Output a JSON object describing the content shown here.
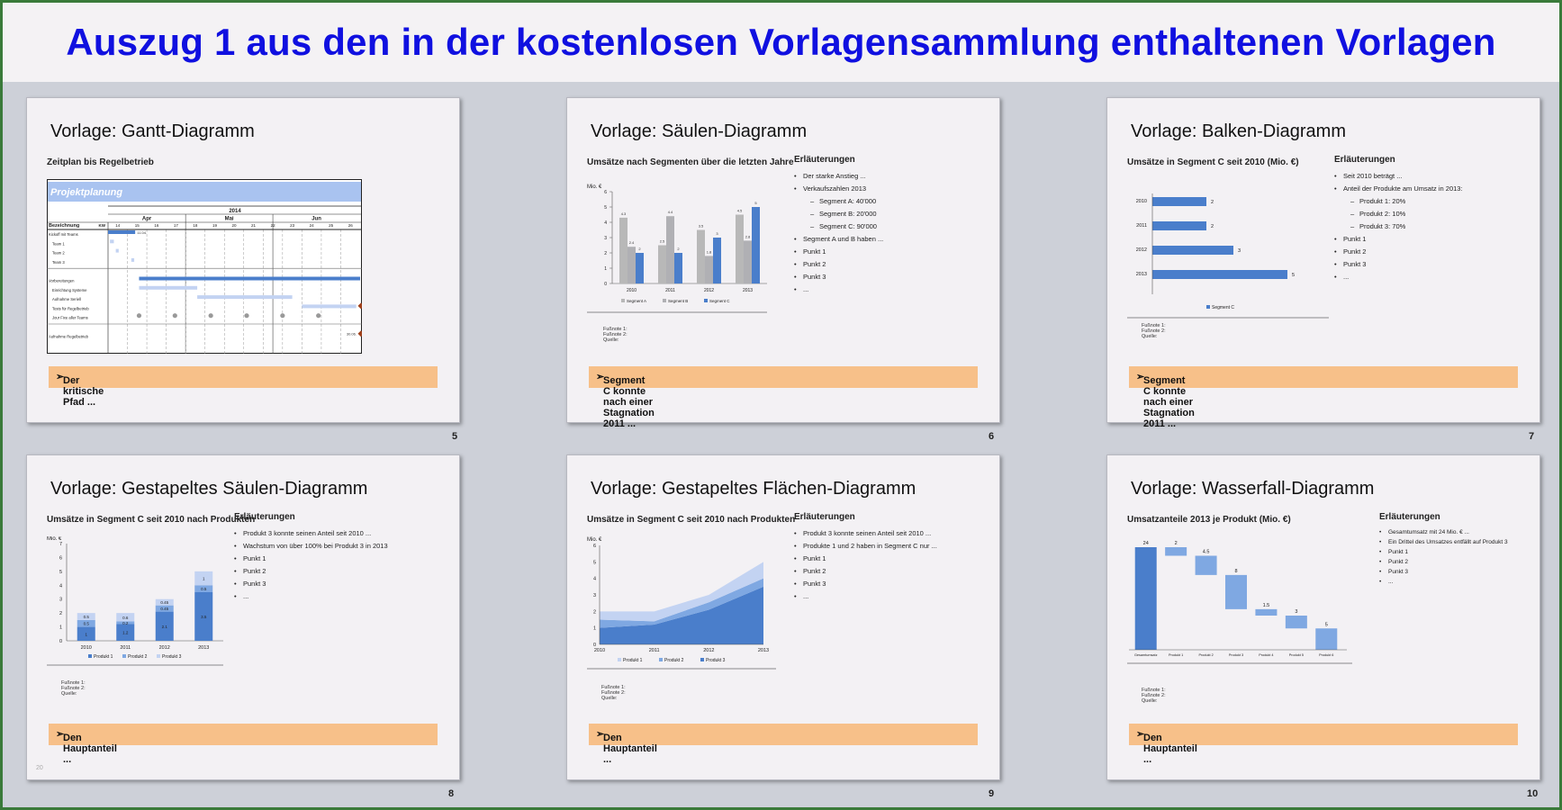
{
  "page": {
    "title": "Auszug 1 aus den in der kostenlosen Vorlagensammlung enthaltenen Vorlagen"
  },
  "colors": {
    "blue_dark": "#4a7ecb",
    "blue_mid": "#7fa8e2",
    "blue_light": "#c3d3f2",
    "grey": "#b8b8b8",
    "orange_bar": "#f7c089",
    "title_blue": "#1010e0"
  },
  "slides": [
    {
      "title": "Vorlage: Gantt-Diagramm",
      "chart_title": "Zeitplan bis Regelbetrieb",
      "callout": "Der kritische Pfad ...",
      "page_number": "5",
      "gantt": {
        "banner": "Projektplanung",
        "year": "2014",
        "months": [
          "Apr",
          "Mai",
          "Jun"
        ],
        "col_label": "Bezeichnung",
        "kw_label": "KW",
        "weeks": [
          "14",
          "15",
          "16",
          "17",
          "18",
          "19",
          "20",
          "21",
          "22",
          "23",
          "24",
          "25",
          "26"
        ],
        "rows": [
          "Kickoff mit Teams",
          "Team 1",
          "Team 2",
          "Team 3",
          "",
          "Vorbereitungen",
          "Einrichtung Systeme",
          "Aufnahme Seriell",
          "Tests für Regelbetrieb",
          "Jour Fixe aller Teams",
          "",
          "Aufnahme Regelbetrieb"
        ],
        "kickoff_note": "11.04.",
        "end_note": "30.06."
      }
    },
    {
      "title": "Vorlage: Säulen-Diagramm",
      "chart_title": "Umsätze nach Segmenten über die letzten Jahre",
      "notes_title": "Erläuterungen",
      "notes": [
        {
          "text": "Der starke Anstieg ...",
          "level": 1
        },
        {
          "text": "Verkaufszahlen 2013",
          "level": 1
        },
        {
          "text": "Segment A: 40'000",
          "level": 2
        },
        {
          "text": "Segment B: 20'000",
          "level": 2
        },
        {
          "text": "Segment C: 90'000",
          "level": 2
        },
        {
          "text": "Segment A und B haben ...",
          "level": 1
        },
        {
          "text": "Punkt 1",
          "level": 1
        },
        {
          "text": "Punkt 2",
          "level": 1
        },
        {
          "text": "Punkt 3",
          "level": 1
        },
        {
          "text": "...",
          "level": 1
        }
      ],
      "footnotes": [
        "Fußnote 1:",
        "Fußnote 2:",
        "Quelle:"
      ],
      "callout": "Segment C konnte nach einer Stagnation 2011 ...",
      "page_number": "6"
    },
    {
      "title": "Vorlage: Balken-Diagramm",
      "chart_title": "Umsätze in Segment C seit 2010 (Mio. €)",
      "notes_title": "Erläuterungen",
      "notes": [
        {
          "text": "Seit 2010 beträgt ...",
          "level": 1
        },
        {
          "text": "Anteil der Produkte am Umsatz in 2013:",
          "level": 1
        },
        {
          "text": "Produkt 1: 20%",
          "level": 2
        },
        {
          "text": "Produkt 2: 10%",
          "level": 2
        },
        {
          "text": "Produkt 3: 70%",
          "level": 2
        },
        {
          "text": "Punkt 1",
          "level": 1
        },
        {
          "text": "Punkt 2",
          "level": 1
        },
        {
          "text": "Punkt 3",
          "level": 1
        },
        {
          "text": "...",
          "level": 1
        }
      ],
      "footnotes": [
        "Fußnote 1:",
        "Fußnote 2:",
        "Quelle:"
      ],
      "callout": "Segment C konnte nach einer Stagnation 2011 ...",
      "page_number": "7"
    },
    {
      "title": "Vorlage: Gestapeltes Säulen-Diagramm",
      "chart_title": "Umsätze in Segment C seit 2010 nach Produkten",
      "notes_title": "Erläuterungen",
      "notes": [
        {
          "text": "Produkt 3 konnte seinen Anteil seit 2010 ...",
          "level": 1
        },
        {
          "text": "Wachstum von über 100% bei Produkt 3 in 2013",
          "level": 1
        },
        {
          "text": "Punkt 1",
          "level": 1
        },
        {
          "text": "Punkt 2",
          "level": 1
        },
        {
          "text": "Punkt 3",
          "level": 1
        },
        {
          "text": "...",
          "level": 1
        }
      ],
      "footnotes": [
        "Fußnote 1:",
        "Fußnote 2:",
        "Quelle:"
      ],
      "callout": "Den Hauptanteil ...",
      "page_number": "8",
      "corner_mark": "20"
    },
    {
      "title": "Vorlage: Gestapeltes Flächen-Diagramm",
      "chart_title": "Umsätze in Segment C seit 2010 nach Produkten",
      "notes_title": "Erläuterungen",
      "notes": [
        {
          "text": "Produkt 3 konnte seinen Anteil seit 2010 ...",
          "level": 1
        },
        {
          "text": "Produkte 1 und 2 haben in Segment C nur ...",
          "level": 1
        },
        {
          "text": "Punkt 1",
          "level": 1
        },
        {
          "text": "Punkt 2",
          "level": 1
        },
        {
          "text": "Punkt 3",
          "level": 1
        },
        {
          "text": "...",
          "level": 1
        }
      ],
      "footnotes": [
        "Fußnote 1:",
        "Fußnote 2:",
        "Quelle:"
      ],
      "callout": "Den Hauptanteil ...",
      "page_number": "9"
    },
    {
      "title": "Vorlage: Wasserfall-Diagramm",
      "chart_title": "Umsatzanteile 2013 je Produkt (Mio. €)",
      "notes_title": "Erläuterungen",
      "notes": [
        {
          "text": "Gesamtumsatz mit 24 Mio. € ...",
          "level": 1
        },
        {
          "text": "Ein Drittel des Umsatzes entfällt auf Produkt 3",
          "level": 1
        },
        {
          "text": "Punkt 1",
          "level": 1
        },
        {
          "text": "Punkt 2",
          "level": 1
        },
        {
          "text": "Punkt 3",
          "level": 1
        },
        {
          "text": "...",
          "level": 1
        }
      ],
      "footnotes": [
        "Fußnote 1:",
        "Fußnote 2:",
        "Quelle:"
      ],
      "callout": "Den Hauptanteil ...",
      "page_number": "10"
    }
  ],
  "chart_data": [
    {
      "type": "bar",
      "ylabel": "Mio. €",
      "categories": [
        "2010",
        "2011",
        "2012",
        "2013"
      ],
      "series": [
        {
          "name": "Segment A",
          "values": [
            4.3,
            2.5,
            3.5,
            4.5
          ]
        },
        {
          "name": "Segment B",
          "values": [
            2.4,
            4.4,
            1.8,
            2.8
          ]
        },
        {
          "name": "Segment C",
          "values": [
            2,
            2,
            3,
            5
          ]
        }
      ],
      "ylim": [
        0,
        6
      ],
      "yticks": [
        0,
        1,
        2,
        3,
        4,
        5,
        6
      ],
      "legend": "bottom"
    },
    {
      "type": "bar",
      "orientation": "horizontal",
      "categories": [
        "2010",
        "2011",
        "2012",
        "2013"
      ],
      "series": [
        {
          "name": "Segment C",
          "values": [
            2,
            2,
            3,
            5
          ]
        }
      ],
      "legend": "bottom"
    },
    {
      "type": "bar",
      "stacked": true,
      "ylabel": "Mio. €",
      "categories": [
        "2010",
        "2011",
        "2012",
        "2013"
      ],
      "series": [
        {
          "name": "Produkt 1",
          "values": [
            1,
            1.2,
            2.1,
            3.5
          ]
        },
        {
          "name": "Produkt 2",
          "values": [
            0.5,
            0.2,
            0.45,
            0.5
          ]
        },
        {
          "name": "Produkt 3",
          "values": [
            0.5,
            0.6,
            0.45,
            1
          ]
        }
      ],
      "ylim": [
        0,
        7
      ],
      "yticks": [
        0,
        1,
        2,
        3,
        4,
        5,
        6,
        7
      ],
      "legend": "bottom"
    },
    {
      "type": "area",
      "stacked": true,
      "ylabel": "Mio. €",
      "x": [
        "2010",
        "2011",
        "2012",
        "2013"
      ],
      "series": [
        {
          "name": "Produkt 3",
          "values": [
            1,
            1.2,
            2.1,
            3.5
          ]
        },
        {
          "name": "Produkt 2",
          "values": [
            0.5,
            0.2,
            0.45,
            0.5
          ]
        },
        {
          "name": "Produkt 1",
          "values": [
            0.5,
            0.6,
            0.45,
            1
          ]
        }
      ],
      "ylim": [
        0,
        6
      ],
      "yticks": [
        0,
        1,
        2,
        3,
        4,
        5,
        6
      ],
      "legend": "bottom"
    },
    {
      "type": "bar",
      "subtype": "waterfall",
      "categories": [
        "Gesamtumsatz",
        "Produkt 1",
        "Produkt 2",
        "Produkt 3",
        "Produkt 4",
        "Produkt 5",
        "Produkt 6"
      ],
      "values": [
        24,
        2,
        4.5,
        8,
        1.5,
        3,
        5
      ],
      "value_labels": [
        "24",
        "2",
        "4.5",
        "8",
        "1.5",
        "3",
        "5"
      ]
    }
  ]
}
